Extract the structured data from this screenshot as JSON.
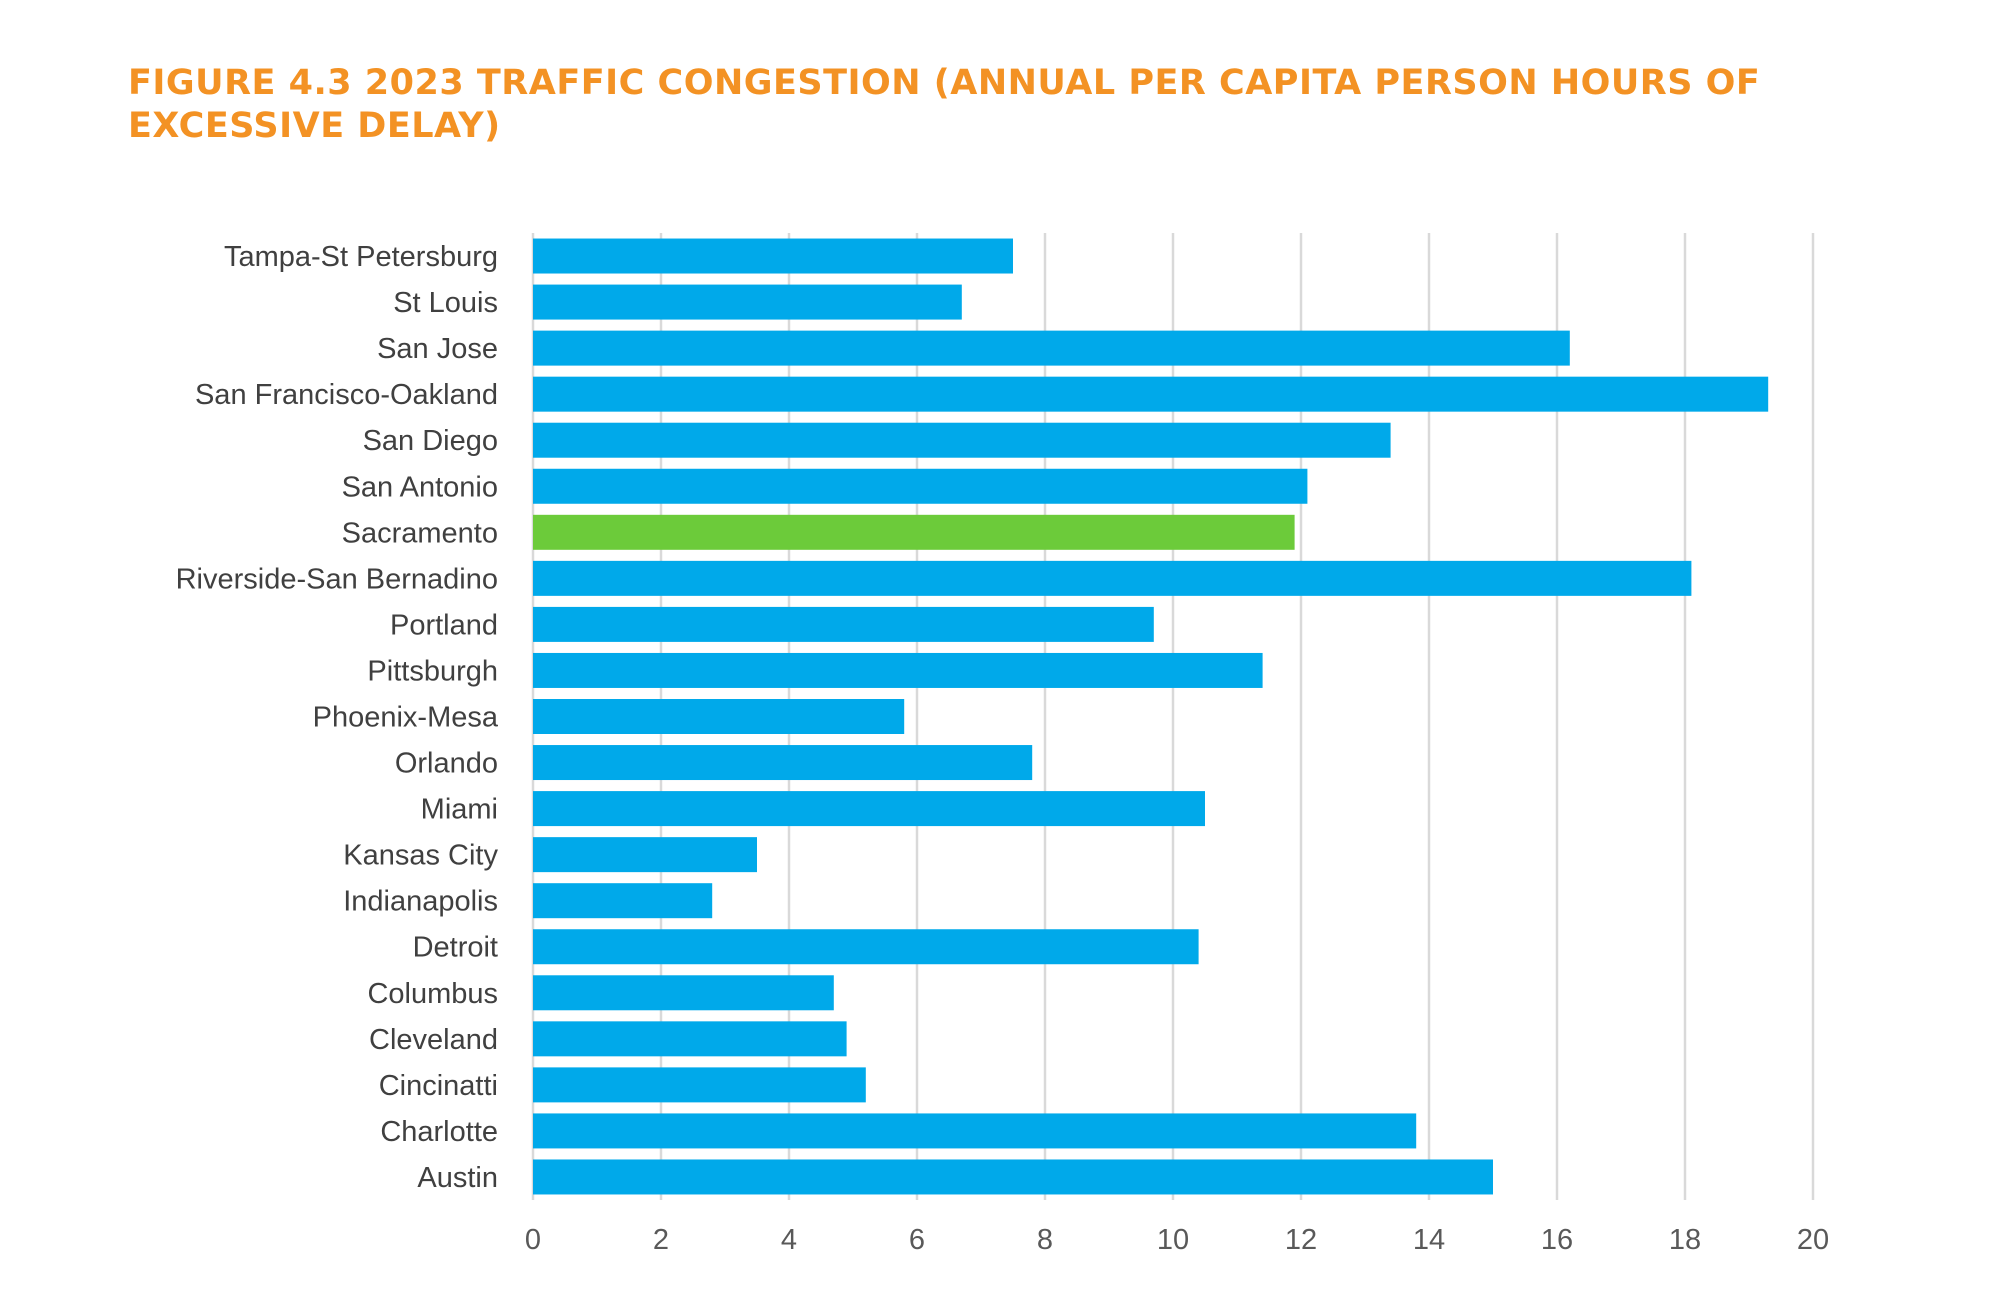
{
  "title": "FIGURE 4.3 2023 TRAFFIC CONGESTION (ANNUAL PER CAPITA PERSON HOURS OF EXCESSIVE DELAY)",
  "chart_data": {
    "type": "bar",
    "orientation": "horizontal",
    "categories": [
      "Tampa-St Petersburg",
      "St Louis",
      "San Jose",
      "San Francisco-Oakland",
      "San Diego",
      "San Antonio",
      "Sacramento",
      "Riverside-San Bernadino",
      "Portland",
      "Pittsburgh",
      "Phoenix-Mesa",
      "Orlando",
      "Miami",
      "Kansas City",
      "Indianapolis",
      "Detroit",
      "Columbus",
      "Cleveland",
      "Cincinatti",
      "Charlotte",
      "Austin"
    ],
    "values": [
      7.5,
      6.7,
      16.2,
      19.3,
      13.4,
      12.1,
      11.9,
      18.1,
      9.7,
      11.4,
      5.8,
      7.8,
      10.5,
      3.5,
      2.8,
      10.4,
      4.7,
      4.9,
      5.2,
      13.8,
      15.0
    ],
    "highlight": "Sacramento",
    "colors": {
      "bar": "#00A9EA",
      "highlight": "#6CCB3A",
      "grid": "#D9D9D9"
    },
    "xlim": [
      0,
      20
    ],
    "xticks": [
      0,
      2,
      4,
      6,
      8,
      10,
      12,
      14,
      16,
      18,
      20
    ],
    "grid": "vertical",
    "legend": "none",
    "xlabel": "",
    "ylabel": ""
  }
}
